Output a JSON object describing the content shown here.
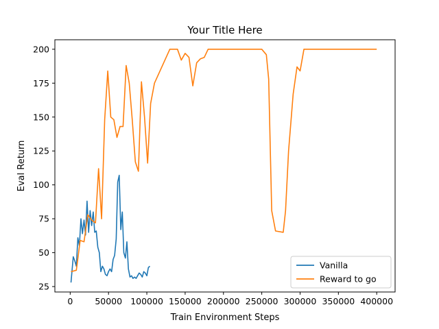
{
  "chart_data": {
    "type": "line",
    "title": "Your Title Here",
    "xlabel": "Train Environment Steps",
    "ylabel": "Eval Return",
    "xlim": [
      -20000,
      424000
    ],
    "ylim": [
      21,
      207
    ],
    "x_ticks": [
      0,
      50000,
      100000,
      150000,
      200000,
      250000,
      300000,
      350000,
      400000
    ],
    "y_ticks": [
      25,
      50,
      75,
      100,
      125,
      150,
      175,
      200
    ],
    "grid": false,
    "legend_position": "lower-right",
    "series": [
      {
        "name": "Vanilla",
        "color": "#1f77b4",
        "x": [
          1000,
          4000,
          6000,
          8000,
          10000,
          12000,
          14000,
          16000,
          18000,
          20000,
          22000,
          24000,
          26000,
          28000,
          30000,
          32000,
          34000,
          36000,
          38000,
          40000,
          42000,
          44000,
          46000,
          48000,
          50000,
          52000,
          54000,
          56000,
          58000,
          60000,
          62000,
          64000,
          66000,
          68000,
          70000,
          72000,
          74000,
          76000,
          78000,
          80000,
          82000,
          84000,
          86000,
          88000,
          90000,
          92000,
          94000,
          96000,
          98000,
          100000,
          102000,
          104000
        ],
        "y": [
          28,
          47,
          44,
          40,
          61,
          55,
          75,
          64,
          74,
          63,
          88,
          65,
          81,
          70,
          80,
          65,
          66,
          54,
          50,
          36,
          40,
          38,
          34,
          33,
          36,
          38,
          36,
          45,
          48,
          60,
          102,
          107,
          67,
          80,
          50,
          46,
          58,
          38,
          32,
          33,
          31,
          32,
          31,
          33,
          35,
          34,
          32,
          36,
          35,
          33,
          39,
          40
        ]
      },
      {
        "name": "Reward to go",
        "color": "#ff7f0e",
        "x": [
          1000,
          8000,
          13000,
          18000,
          23000,
          28000,
          33000,
          37000,
          41000,
          45000,
          49000,
          53000,
          57000,
          61000,
          65000,
          69000,
          73000,
          77000,
          81000,
          85000,
          89000,
          93000,
          97000,
          101000,
          105000,
          110000,
          130000,
          140000,
          145000,
          150000,
          155000,
          160000,
          165000,
          170000,
          175000,
          180000,
          200000,
          250000,
          256000,
          259000,
          263000,
          268000,
          278000,
          281000,
          285000,
          291000,
          296000,
          300000,
          305000,
          400000
        ],
        "y": [
          36,
          37,
          59,
          58,
          78,
          74,
          72,
          112,
          75,
          148,
          184,
          150,
          148,
          135,
          143,
          143,
          188,
          175,
          148,
          117,
          110,
          176,
          150,
          116,
          160,
          175,
          200,
          200,
          192,
          197,
          194,
          173,
          190,
          193,
          194,
          200,
          200,
          200,
          196,
          178,
          81,
          66,
          65,
          81,
          125,
          167,
          187,
          184,
          200,
          200
        ]
      }
    ]
  }
}
